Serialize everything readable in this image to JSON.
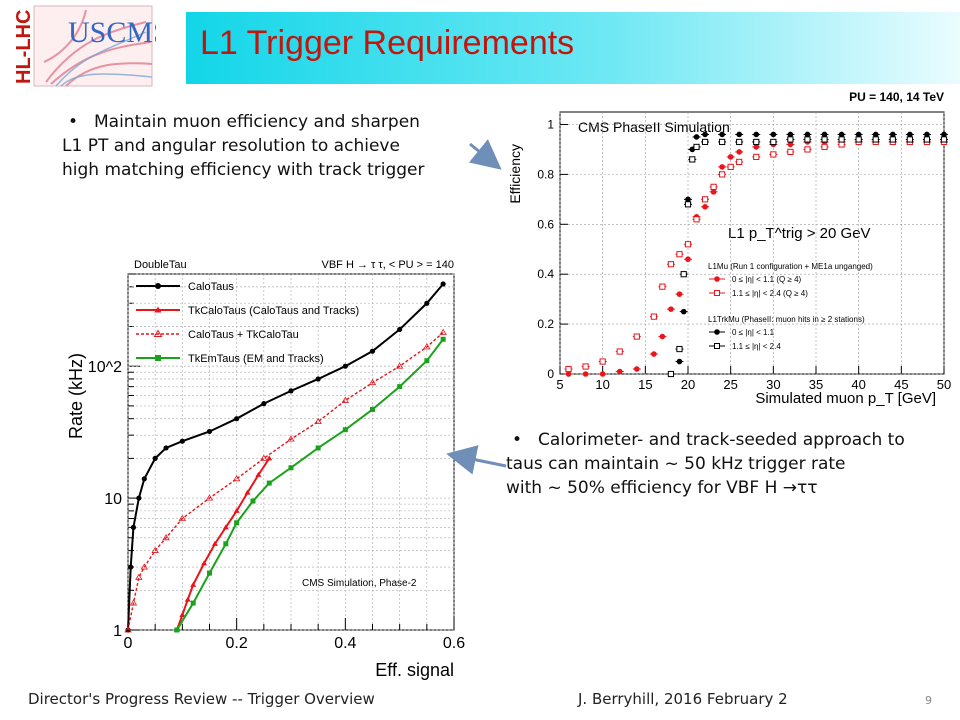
{
  "logo": {
    "text_left": "HL-LHC",
    "text_top": "USCMS"
  },
  "title": "L1 Trigger Requirements",
  "bullet1": {
    "bullet": "•",
    "line1": "Maintain muon efficiency and sharpen",
    "line2": "L1 PT and angular resolution to achieve",
    "line3": "high matching efficiency with track trigger"
  },
  "bullet2": {
    "bullet": "•",
    "line1": "Calorimeter- and track-seeded approach to",
    "line2": "taus can maintain ~ 50 kHz trigger rate",
    "line3": "with ~ 50% efficiency for VBF H →ττ"
  },
  "footer": {
    "left": "Director's Progress Review -- Trigger Overview",
    "middle": "J. Berryhill, 2016 February 2",
    "page": "9"
  },
  "colors": {
    "title": "#c0160e",
    "band": "#12d6e8",
    "black": "#000000",
    "red": "#e8151b",
    "green": "#1aa31a"
  },
  "chart_data": [
    {
      "type": "line",
      "title": "PU = 140, 14 TeV",
      "annotation": "CMS PhaseII Simulation",
      "threshold_label": "L1 p_T^trig > 20 GeV",
      "xlabel": "Simulated muon p_T  [GeV]",
      "ylabel": "Efficiency",
      "xlim": [
        5,
        50
      ],
      "ylim": [
        0,
        1.05
      ],
      "xticks": [
        "5",
        "10",
        "15",
        "20",
        "25",
        "30",
        "35",
        "40",
        "45",
        "50"
      ],
      "yticks": [
        "0",
        "0.2",
        "0.4",
        "0.6",
        "0.8",
        "1"
      ],
      "legend_header1": "L1Mu (Run 1 configuration + ME1a unganged)",
      "legend_header2": "L1TrkMu (PhaseII: muon hits in ≥ 2 stations)",
      "legend_position": "right-middle",
      "series": [
        {
          "name": "0  ≤ |η| < 1.1  (Q ≥ 4)",
          "color": "#e8151b",
          "marker": "filled",
          "x": [
            6,
            8,
            10,
            12,
            14,
            16,
            17,
            18,
            19,
            20,
            21,
            22,
            23,
            24,
            25,
            26,
            28,
            30,
            32,
            34,
            36,
            38,
            40,
            42,
            44,
            46,
            48,
            50
          ],
          "y": [
            0,
            0,
            0,
            0.01,
            0.02,
            0.08,
            0.15,
            0.26,
            0.32,
            0.46,
            0.63,
            0.67,
            0.73,
            0.83,
            0.87,
            0.89,
            0.91,
            0.92,
            0.92,
            0.93,
            0.93,
            0.93,
            0.93,
            0.93,
            0.93,
            0.93,
            0.93,
            0.93
          ]
        },
        {
          "name": "1.1 ≤ |η| < 2.4  (Q ≥ 4)",
          "color": "#e8151b",
          "marker": "open",
          "x": [
            6,
            8,
            10,
            12,
            14,
            16,
            17,
            18,
            19,
            20,
            21,
            22,
            23,
            24,
            25,
            26,
            28,
            30,
            32,
            34,
            36,
            38,
            40,
            42,
            44,
            46,
            48,
            50
          ],
          "y": [
            0.02,
            0.03,
            0.05,
            0.09,
            0.15,
            0.23,
            0.35,
            0.44,
            0.48,
            0.52,
            0.62,
            0.7,
            0.75,
            0.8,
            0.83,
            0.85,
            0.87,
            0.88,
            0.89,
            0.9,
            0.91,
            0.92,
            0.93,
            0.93,
            0.93,
            0.93,
            0.93,
            0.93
          ]
        },
        {
          "name": "0  ≤ |η| < 1.1",
          "color": "#000000",
          "marker": "filled",
          "x": [
            18,
            19,
            19.5,
            20,
            20.5,
            21,
            22,
            24,
            26,
            28,
            30,
            32,
            34,
            36,
            38,
            40,
            42,
            44,
            46,
            48,
            50
          ],
          "y": [
            0,
            0.05,
            0.25,
            0.7,
            0.9,
            0.95,
            0.96,
            0.96,
            0.96,
            0.96,
            0.96,
            0.96,
            0.96,
            0.96,
            0.96,
            0.96,
            0.96,
            0.96,
            0.96,
            0.96,
            0.96
          ]
        },
        {
          "name": "1.1 ≤ |η| < 2.4",
          "color": "#000000",
          "marker": "open",
          "x": [
            18,
            19,
            19.5,
            20,
            20.5,
            21,
            22,
            24,
            26,
            28,
            30,
            32,
            34,
            36,
            38,
            40,
            42,
            44,
            46,
            48,
            50
          ],
          "y": [
            0,
            0.1,
            0.4,
            0.68,
            0.86,
            0.91,
            0.93,
            0.93,
            0.93,
            0.93,
            0.93,
            0.94,
            0.94,
            0.94,
            0.94,
            0.94,
            0.94,
            0.94,
            0.94,
            0.94,
            0.94
          ]
        }
      ]
    },
    {
      "type": "line",
      "title_left": "DoubleTau",
      "title_right": "VBF H → τ τ, < PU > = 140",
      "annotation": "CMS Simulation, Phase-2",
      "xlabel": "Eff. signal",
      "ylabel": "Rate (kHz)",
      "xlim": [
        0,
        0.6
      ],
      "ylim": [
        1,
        500
      ],
      "yscale": "log",
      "xticks": [
        "0",
        "0.2",
        "0.4",
        "0.6"
      ],
      "yticks": [
        "1",
        "10",
        "10^2"
      ],
      "legend_position": "top-left",
      "series": [
        {
          "name": "CaloTaus",
          "color": "#000000",
          "style": "solid",
          "x": [
            0.0,
            0.005,
            0.01,
            0.02,
            0.03,
            0.05,
            0.07,
            0.1,
            0.15,
            0.2,
            0.25,
            0.3,
            0.35,
            0.4,
            0.45,
            0.5,
            0.55,
            0.58
          ],
          "y": [
            1,
            3,
            6,
            10,
            14,
            20,
            24,
            27,
            32,
            40,
            52,
            65,
            80,
            100,
            130,
            190,
            300,
            420
          ]
        },
        {
          "name": "TkCaloTaus (CaloTaus and Tracks)",
          "color": "#e8151b",
          "style": "solid",
          "x": [
            0.09,
            0.1,
            0.11,
            0.12,
            0.14,
            0.16,
            0.18,
            0.2,
            0.22,
            0.24,
            0.26
          ],
          "y": [
            1,
            1.3,
            1.7,
            2.2,
            3.2,
            4.5,
            6.0,
            8.0,
            11,
            15,
            20
          ]
        },
        {
          "name": "CaloTaus + TkCaloTau",
          "color": "#e8151b",
          "style": "dotted",
          "x": [
            0.0,
            0.01,
            0.02,
            0.03,
            0.05,
            0.07,
            0.1,
            0.15,
            0.2,
            0.25,
            0.3,
            0.35,
            0.4,
            0.45,
            0.5,
            0.55,
            0.58
          ],
          "y": [
            1,
            1.6,
            2.5,
            3.0,
            4.0,
            5.0,
            7.0,
            10,
            14,
            20,
            28,
            38,
            55,
            75,
            100,
            140,
            180
          ]
        },
        {
          "name": "TkEmTaus (EM and Tracks)",
          "color": "#1aa31a",
          "style": "solid",
          "x": [
            0.09,
            0.12,
            0.15,
            0.18,
            0.2,
            0.23,
            0.26,
            0.3,
            0.35,
            0.4,
            0.45,
            0.5,
            0.55,
            0.58
          ],
          "y": [
            1,
            1.6,
            2.7,
            4.5,
            6.5,
            9.5,
            13,
            17,
            24,
            33,
            47,
            70,
            110,
            160
          ]
        }
      ]
    }
  ]
}
